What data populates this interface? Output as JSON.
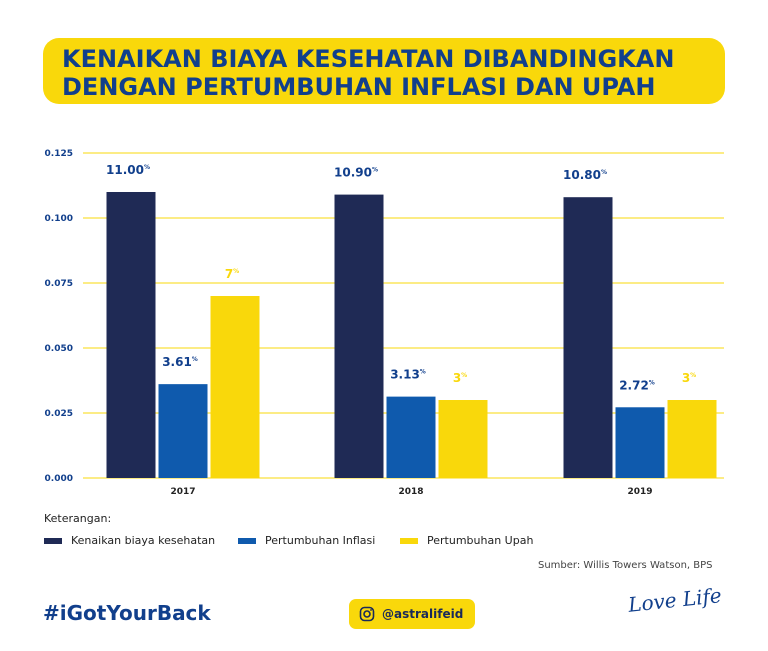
{
  "title": "KENAIKAN BIAYA KESEHATAN DIBANDINGKAN DENGAN PERTUMBUHAN INFLASI DAN UPAH",
  "legend_title": "Keterangan:",
  "source": "Sumber: Willis Towers Watson, BPS",
  "hashtag": "#iGotYourBack",
  "instagram": {
    "icon": "instagram-icon",
    "handle": "@astralifeid"
  },
  "brand_slogan": "Love Life",
  "colors": {
    "health": "#1f2a55",
    "inflation": "#0f5aad",
    "wage": "#f9d80b",
    "axis_text": "#113f8c",
    "grid": "#f9d80b"
  },
  "chart_data": {
    "type": "bar",
    "categories": [
      "2017",
      "2018",
      "2019"
    ],
    "series": [
      {
        "name": "Kenaikan biaya kesehatan",
        "values": [
          0.11,
          0.109,
          0.108
        ],
        "labels": [
          "11.00%",
          "10.90%",
          "10.80%"
        ]
      },
      {
        "name": "Pertumbuhan Inflasi",
        "values": [
          0.0361,
          0.0313,
          0.0272
        ],
        "labels": [
          "3.61%",
          "3.13%",
          "2.72%"
        ]
      },
      {
        "name": "Pertumbuhan Upah",
        "values": [
          0.07,
          0.03,
          0.03
        ],
        "labels": [
          "7%",
          "3%",
          "3%"
        ]
      }
    ],
    "yticks": [
      "0.000",
      "0.025",
      "0.050",
      "0.075",
      "0.100",
      "0.125"
    ],
    "ylim": [
      0,
      0.125
    ],
    "grid": true,
    "legend_position": "bottom-left"
  }
}
